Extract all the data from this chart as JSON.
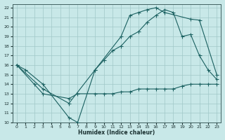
{
  "xlabel": "Humidex (Indice chaleur)",
  "bg_color": "#c8e8e8",
  "line_color": "#1a6060",
  "grid_color": "#a0c8c8",
  "xlim": [
    -0.5,
    23.5
  ],
  "ylim": [
    10,
    22.4
  ],
  "xticks": [
    0,
    1,
    2,
    3,
    4,
    5,
    6,
    7,
    8,
    9,
    10,
    11,
    12,
    13,
    14,
    15,
    16,
    17,
    18,
    19,
    20,
    21,
    22,
    23
  ],
  "yticks": [
    10,
    11,
    12,
    13,
    14,
    15,
    16,
    17,
    18,
    19,
    20,
    21,
    22
  ],
  "line1_x": [
    0,
    1,
    3,
    6,
    7,
    9,
    12,
    13,
    14,
    15,
    16,
    17,
    20,
    21,
    23
  ],
  "line1_y": [
    16,
    15.5,
    14,
    10.5,
    10,
    15.5,
    19,
    21.2,
    21.5,
    21.8,
    22,
    21.5,
    20.8,
    20.7,
    15
  ],
  "line2_x": [
    0,
    2,
    3,
    6,
    7,
    9,
    10,
    11,
    12,
    13,
    14,
    15,
    16,
    17,
    18,
    19,
    20,
    21,
    22,
    23
  ],
  "line2_y": [
    16,
    14,
    13,
    12.5,
    13,
    13,
    13,
    13,
    13.2,
    13.2,
    13.5,
    13.5,
    13.5,
    13.5,
    13.5,
    13.8,
    14,
    14,
    14,
    14
  ],
  "line3_x": [
    0,
    3,
    6,
    9,
    10,
    11,
    12,
    13,
    14,
    15,
    16,
    17,
    18,
    19,
    20,
    21,
    22,
    23
  ],
  "line3_y": [
    16,
    13.5,
    12,
    15.5,
    16.5,
    17.5,
    18,
    19,
    19.5,
    20.5,
    21.2,
    21.8,
    21.5,
    19,
    19.2,
    17,
    15.5,
    14.5
  ]
}
